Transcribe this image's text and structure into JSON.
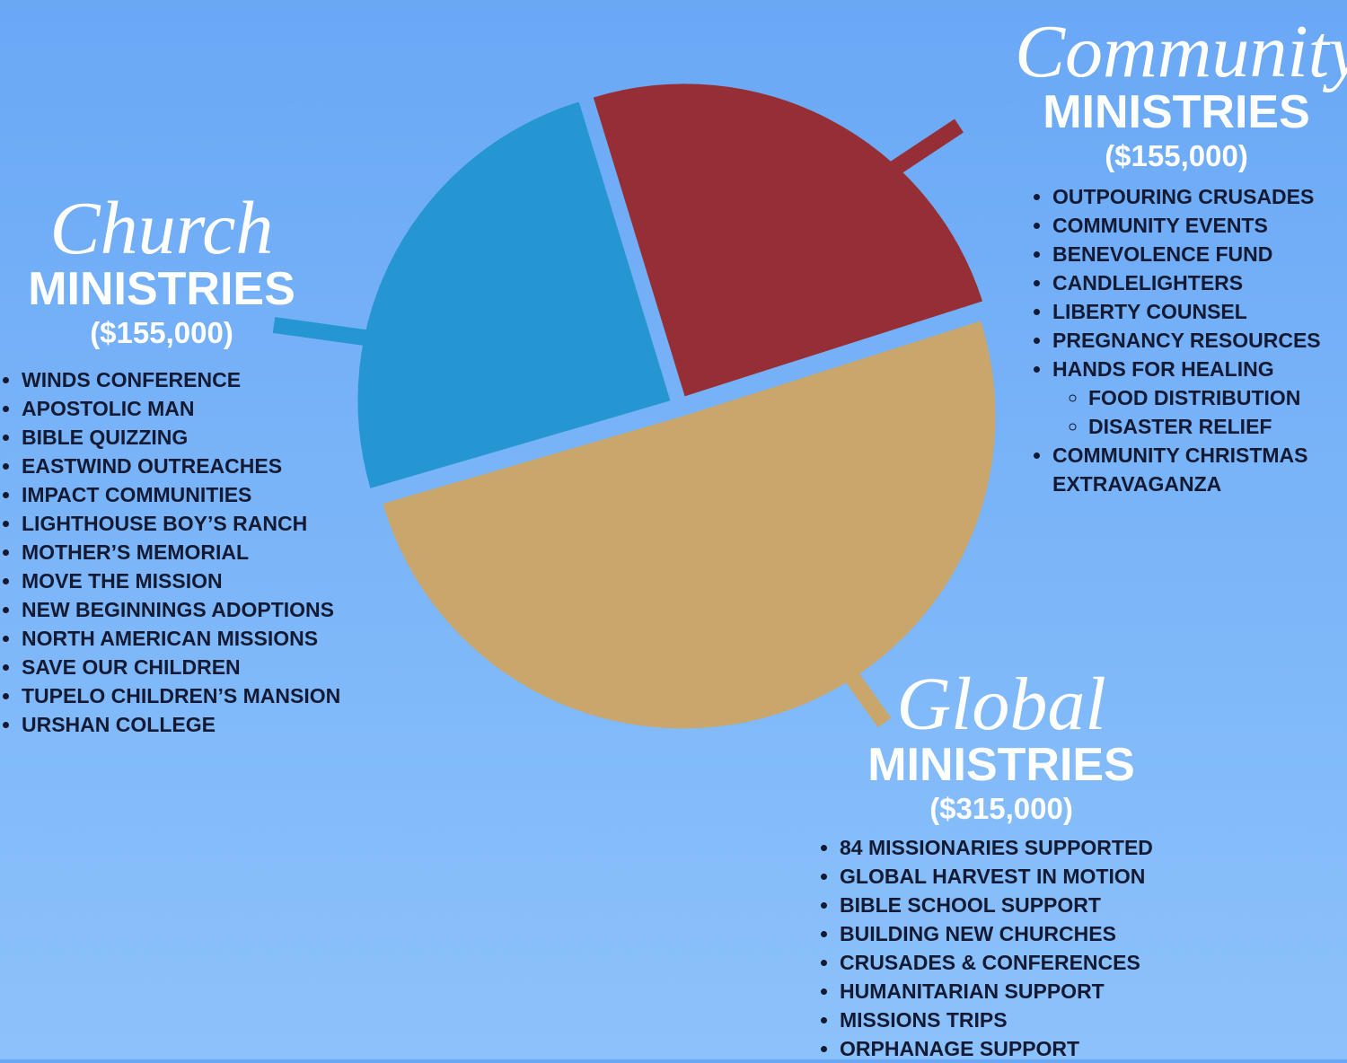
{
  "chart_data": {
    "type": "pie",
    "categories": [
      "Community",
      "Global",
      "Church"
    ],
    "headings": [
      "MINISTRIES",
      "MINISTRIES",
      "MINISTRIES"
    ],
    "values": [
      155000,
      315000,
      155000
    ],
    "value_labels": [
      "($155,000)",
      "($315,000)",
      "($155,000)"
    ],
    "colors": [
      "#962f35",
      "#c9a66b",
      "#2596d1"
    ],
    "lists": [
      [
        "OUTPOURING CRUSADES",
        "COMMUNITY EVENTS",
        "BENEVOLENCE FUND",
        "CANDLELIGHTERS",
        "LIBERTY COUNSEL",
        "PREGNANCY RESOURCES",
        {
          "label": "HANDS FOR HEALING",
          "items": [
            "FOOD DISTRIBUTION",
            "DISASTER RELIEF"
          ]
        },
        "COMMUNITY CHRISTMAS EXTRAVAGANZA"
      ],
      [
        "84 MISSIONARIES SUPPORTED",
        "GLOBAL HARVEST IN MOTION",
        "BIBLE SCHOOL SUPPORT",
        "BUILDING NEW CHURCHES",
        "CRUSADES & CONFERENCES",
        "HUMANITARIAN SUPPORT",
        "MISSIONS TRIPS",
        "ORPHANAGE SUPPORT"
      ],
      [
        "WINDS CONFERENCE",
        "APOSTOLIC MAN",
        "BIBLE QUIZZING",
        "EASTWIND OUTREACHES",
        "IMPACT COMMUNITIES",
        "LIGHTHOUSE BOY’S RANCH",
        "MOTHER’S MEMORIAL",
        "MOVE THE MISSION",
        "NEW BEGINNINGS ADOPTIONS",
        "NORTH AMERICAN MISSIONS",
        "SAVE OUR CHILDREN",
        "TUPELO CHILDREN’S MANSION",
        "URSHAN COLLEGE"
      ]
    ]
  }
}
